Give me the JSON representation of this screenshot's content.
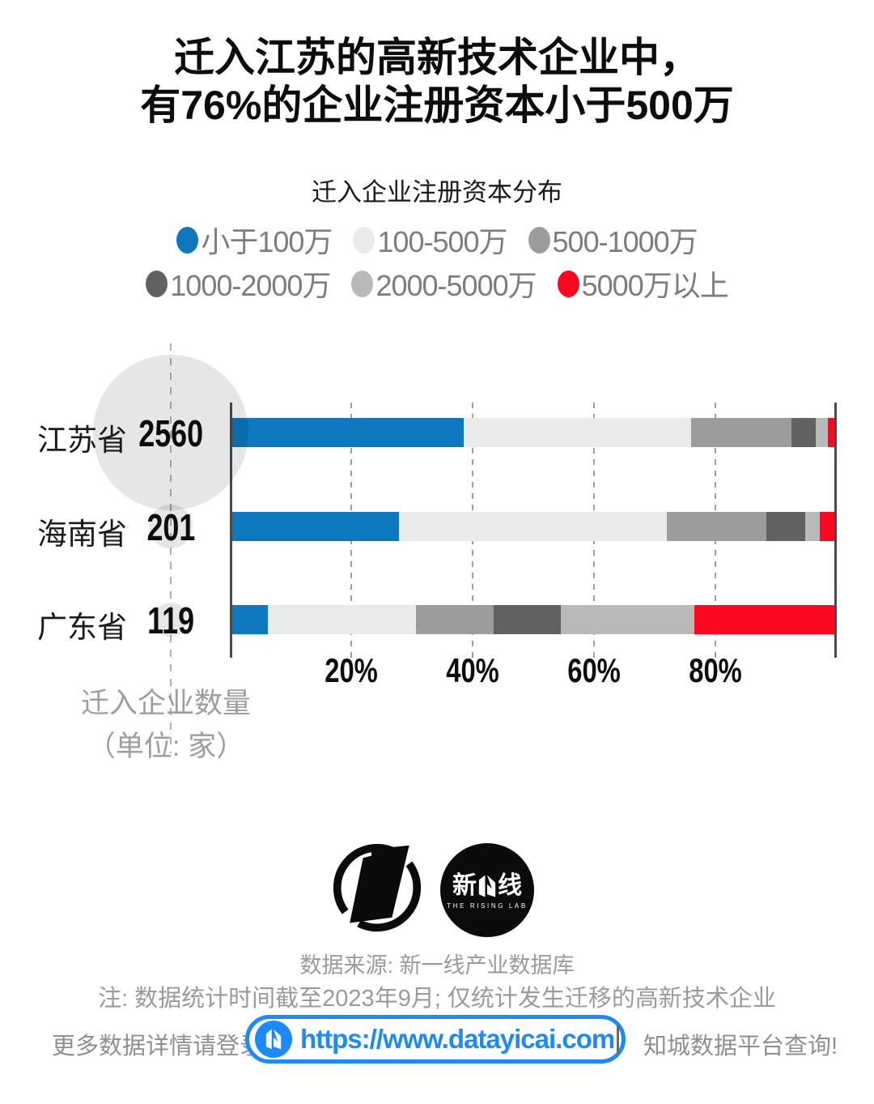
{
  "title": {
    "line1": "迁入江苏的高新技术企业中，",
    "line2": "有76%的企业注册资本小于500万"
  },
  "subtitle": "迁入企业注册资本分布",
  "chart_data": {
    "type": "bar",
    "stacked": true,
    "orientation": "horizontal",
    "title": "迁入企业注册资本分布",
    "categories": [
      "江苏省",
      "海南省",
      "广东省"
    ],
    "counts": [
      2560,
      201,
      119
    ],
    "counts_caption": {
      "line1": "迁入企业数量",
      "line2": "（单位: 家）"
    },
    "series": [
      {
        "name": "小于100万",
        "color": "#0E78BE",
        "values": [
          38.3,
          27.6,
          5.9
        ]
      },
      {
        "name": "100-500万",
        "color": "#E9EAEA",
        "values": [
          37.6,
          44.3,
          24.5
        ]
      },
      {
        "name": "500-1000万",
        "color": "#9C9C9C",
        "values": [
          16.6,
          16.5,
          12.8
        ]
      },
      {
        "name": "1000-2000万",
        "color": "#616161",
        "values": [
          4.0,
          6.4,
          11.1
        ]
      },
      {
        "name": "2000-5000万",
        "color": "#B9B9B9",
        "values": [
          2.0,
          2.4,
          22.1
        ]
      },
      {
        "name": "5000万以上",
        "color": "#FB0722",
        "values": [
          1.5,
          2.8,
          23.6
        ]
      }
    ],
    "xticks": {
      "values": [
        20,
        40,
        60,
        80
      ],
      "labels": [
        "20%",
        "40%",
        "60%",
        "80%"
      ]
    },
    "xlim": [
      0,
      100
    ],
    "grid": "dashed-vertical",
    "legend_position": "top",
    "values_are": "percent share of companies per capital bucket"
  },
  "colors": {
    "accent_blue": "#0E78BE",
    "bright_red": "#FB0722",
    "link_blue": "#1B8BFC",
    "legend_text_gray": "#7D7D7D",
    "caption_gray": "#9D9D9D",
    "bubble_gray": "#E6E6E6"
  },
  "logos": {
    "left_icon": "yicai-tilted-square-ring-logo",
    "right": {
      "text_left": "新",
      "glyph": "folded-one-glyph",
      "text_right": "线",
      "subtext": "THE RISING LAB"
    }
  },
  "footer": {
    "source": "数据来源: 新一线产业数据库",
    "note": "注: 数据统计时间截至2023年9月; 仅统计发生迁移的高新技术企业",
    "cta_prefix": "更多数据详情请登录",
    "url": "https://www.datayicai.com",
    "cta_suffix": "知城数据平台查询!"
  }
}
